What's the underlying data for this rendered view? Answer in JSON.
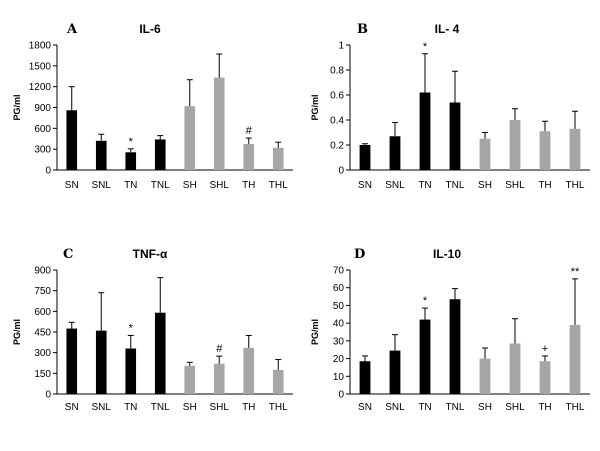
{
  "chart_data": [
    {
      "type": "bar",
      "panel": "A",
      "title": "IL-6",
      "ylabel": "PG/ml",
      "ylim": [
        0,
        1800
      ],
      "yticks": [
        "0",
        "300",
        "600",
        "900",
        "1200",
        "1500",
        "1800"
      ],
      "grid": false,
      "categories": [
        "SN",
        "SNL",
        "TN",
        "TNL",
        "SH",
        "SHL",
        "TH",
        "THL"
      ],
      "values": [
        860,
        420,
        255,
        440,
        920,
        1330,
        375,
        320
      ],
      "errors": [
        340,
        95,
        50,
        55,
        380,
        340,
        85,
        80
      ],
      "bar_colors": [
        "#000000",
        "#000000",
        "#000000",
        "#000000",
        "#a6a6a6",
        "#a6a6a6",
        "#a6a6a6",
        "#a6a6a6"
      ],
      "annotations": [
        "",
        "",
        "*",
        "",
        "",
        "",
        "#",
        ""
      ]
    },
    {
      "type": "bar",
      "panel": "B",
      "title": "IL- 4",
      "ylabel": "PG/ml",
      "ylim": [
        0,
        1
      ],
      "yticks": [
        "0",
        "0.2",
        "0.4",
        "0.6",
        "0.8",
        "1"
      ],
      "grid": false,
      "categories": [
        "SN",
        "SNL",
        "TN",
        "TNL",
        "SH",
        "SHL",
        "TH",
        "THL"
      ],
      "values": [
        0.2,
        0.27,
        0.62,
        0.54,
        0.25,
        0.4,
        0.31,
        0.33
      ],
      "errors": [
        0.01,
        0.11,
        0.31,
        0.25,
        0.05,
        0.09,
        0.08,
        0.14
      ],
      "bar_colors": [
        "#000000",
        "#000000",
        "#000000",
        "#000000",
        "#a6a6a6",
        "#a6a6a6",
        "#a6a6a6",
        "#a6a6a6"
      ],
      "annotations": [
        "",
        "",
        "*",
        "",
        "",
        "",
        "",
        ""
      ]
    },
    {
      "type": "bar",
      "panel": "C",
      "title": "TNF-α",
      "ylabel": "PG/ml",
      "ylim": [
        0,
        900
      ],
      "yticks": [
        "0",
        "150",
        "300",
        "450",
        "600",
        "750",
        "900"
      ],
      "grid": false,
      "categories": [
        "SN",
        "SNL",
        "TN",
        "TNL",
        "SH",
        "SHL",
        "TH",
        "THL"
      ],
      "values": [
        475,
        460,
        330,
        590,
        205,
        220,
        335,
        175
      ],
      "errors": [
        45,
        275,
        95,
        255,
        25,
        55,
        90,
        75
      ],
      "bar_colors": [
        "#000000",
        "#000000",
        "#000000",
        "#000000",
        "#a6a6a6",
        "#a6a6a6",
        "#a6a6a6",
        "#a6a6a6"
      ],
      "annotations": [
        "",
        "",
        "*",
        "",
        "",
        "#",
        "",
        ""
      ]
    },
    {
      "type": "bar",
      "panel": "D",
      "title": "IL-10",
      "ylabel": "PG/ml",
      "ylim": [
        0,
        70
      ],
      "yticks": [
        "0",
        "10",
        "20",
        "30",
        "40",
        "50",
        "60",
        "70"
      ],
      "grid": false,
      "categories": [
        "SN",
        "SNL",
        "TN",
        "TNL",
        "SH",
        "SHL",
        "TH",
        "THL"
      ],
      "values": [
        18.5,
        24.5,
        42,
        53.5,
        20,
        28.5,
        18.5,
        39
      ],
      "errors": [
        3,
        9,
        6.5,
        6,
        6,
        14,
        3,
        26
      ],
      "bar_colors": [
        "#000000",
        "#000000",
        "#000000",
        "#000000",
        "#a6a6a6",
        "#a6a6a6",
        "#a6a6a6",
        "#a6a6a6"
      ],
      "annotations": [
        "",
        "",
        "*",
        "",
        "",
        "",
        "+",
        "**"
      ]
    }
  ]
}
